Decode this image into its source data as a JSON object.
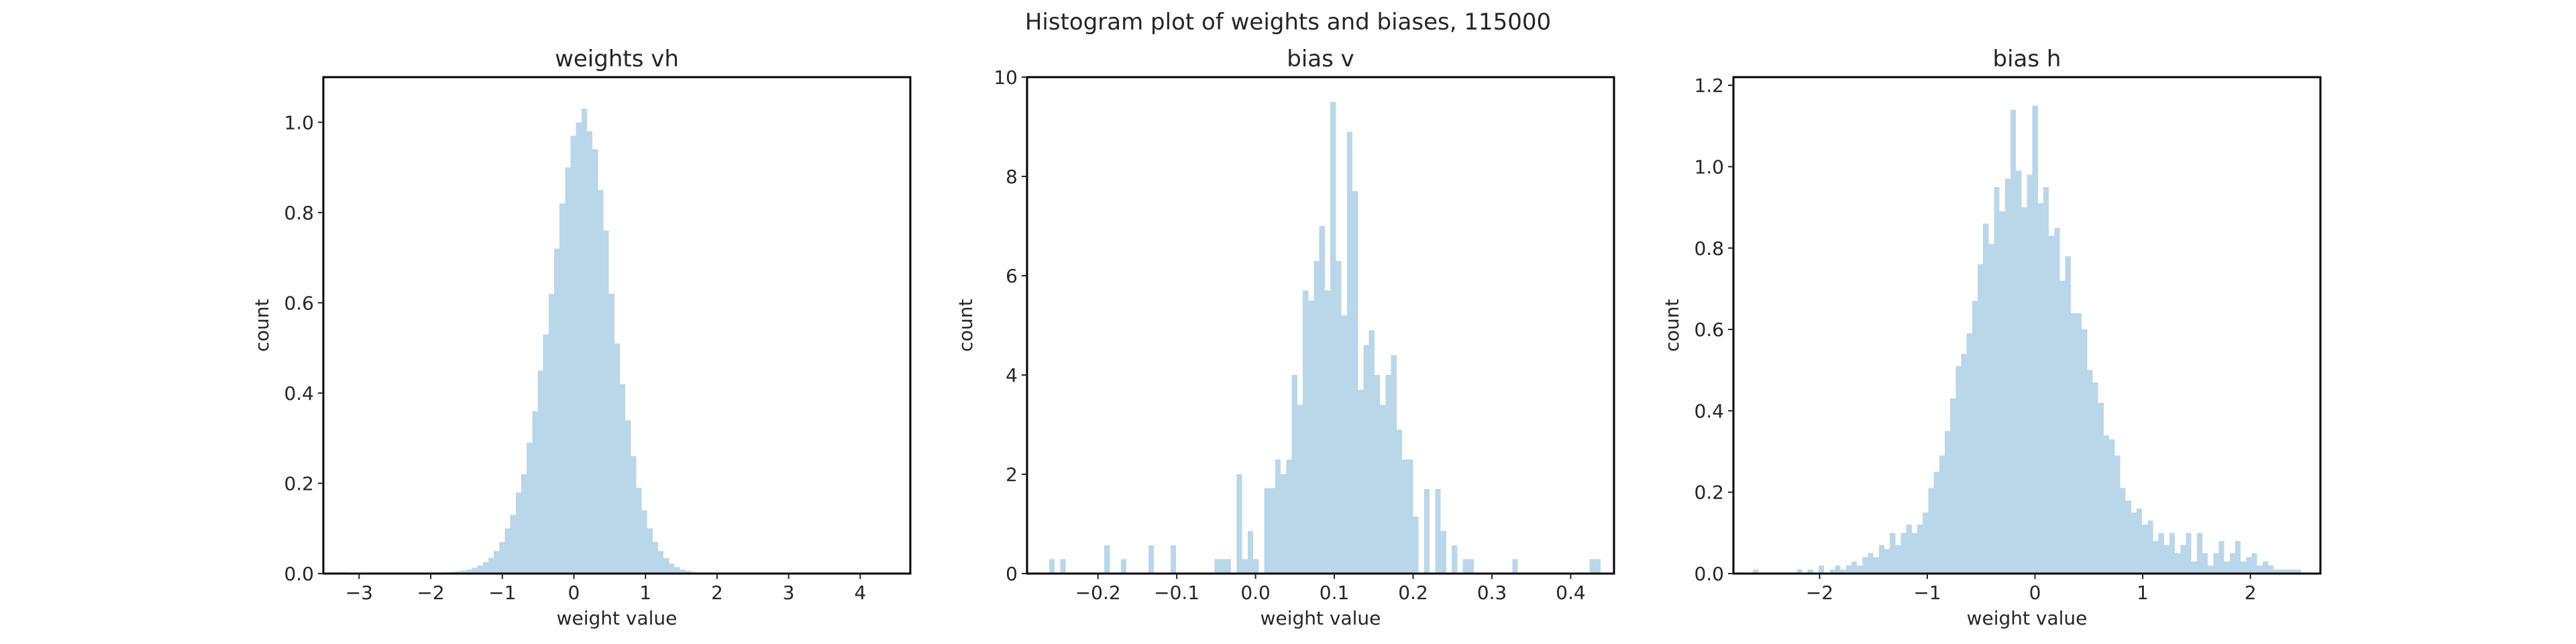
{
  "suptitle": "Histogram plot of weights and biases, 115000",
  "bar_color": "#bad6e9",
  "frame_color": "#000000",
  "chart_data": [
    {
      "type": "histogram",
      "title": "weights vh",
      "xlabel": "weight value",
      "ylabel": "count",
      "xlim": [
        -3.5,
        4.7
      ],
      "ylim": [
        0,
        1.1
      ],
      "xticks": [
        -3,
        -2,
        -1,
        0,
        1,
        2,
        3,
        4
      ],
      "yticks": [
        0.0,
        0.2,
        0.4,
        0.6,
        0.8,
        1.0
      ],
      "ytick_labels": [
        "0.0",
        "0.2",
        "0.4",
        "0.6",
        "0.8",
        "1.0"
      ],
      "bin_start": -3.26,
      "bin_width": 0.0765,
      "counts": [
        0.003,
        0,
        0,
        0,
        0,
        0,
        0,
        0,
        0,
        0,
        0,
        0,
        0,
        0,
        0,
        0.001,
        0.001,
        0.001,
        0.002,
        0.003,
        0.004,
        0.005,
        0.007,
        0.009,
        0.013,
        0.018,
        0.025,
        0.035,
        0.05,
        0.07,
        0.1,
        0.13,
        0.18,
        0.22,
        0.29,
        0.36,
        0.45,
        0.53,
        0.62,
        0.72,
        0.82,
        0.9,
        0.97,
        1.0,
        1.03,
        0.98,
        0.94,
        0.85,
        0.76,
        0.62,
        0.51,
        0.42,
        0.34,
        0.26,
        0.19,
        0.14,
        0.1,
        0.07,
        0.05,
        0.034,
        0.022,
        0.014,
        0.009,
        0.006,
        0.004,
        0.002,
        0.001,
        0.001,
        0.001,
        0.0005,
        0.0005,
        0.0003,
        0.0002,
        0.0001,
        0.0001,
        0.0001,
        0.0001,
        0.0001,
        0.0001,
        0.0001,
        0.0001,
        0.0001,
        0.0001,
        0.0001,
        0.0001,
        0.0001,
        0.0001,
        0.0001,
        0.0001,
        0.0001,
        0.0001,
        0.0001,
        0.0001,
        0.0001,
        0.0001,
        0.0001,
        0.0001,
        0.0001,
        0.0001,
        0.0001
      ]
    },
    {
      "type": "histogram",
      "title": "bias v",
      "xlabel": "weight value",
      "ylabel": "count",
      "xlim": [
        -0.29,
        0.455
      ],
      "ylim": [
        0,
        10
      ],
      "xticks": [
        -0.2,
        -0.1,
        0.0,
        0.1,
        0.2,
        0.3,
        0.4
      ],
      "xtick_labels": [
        "−0.2",
        "−0.1",
        "0.0",
        "0.1",
        "0.2",
        "0.3",
        "0.4"
      ],
      "yticks": [
        0,
        2,
        4,
        6,
        8,
        10
      ],
      "ytick_labels": [
        "0",
        "2",
        "4",
        "6",
        "8",
        "10"
      ],
      "bin_start": -0.262,
      "bin_width": 0.007,
      "counts": [
        0.29,
        0,
        0.29,
        0,
        0,
        0,
        0,
        0,
        0,
        0,
        0.57,
        0,
        0,
        0.29,
        0,
        0,
        0,
        0,
        0.57,
        0,
        0,
        0,
        0.57,
        0,
        0,
        0,
        0,
        0,
        0,
        0,
        0.29,
        0.29,
        0.29,
        0,
        2.0,
        0.29,
        0.86,
        0.29,
        0,
        1.72,
        1.72,
        2.3,
        2.0,
        2.3,
        4.0,
        3.4,
        5.7,
        5.5,
        6.3,
        7.0,
        5.7,
        9.5,
        6.3,
        5.2,
        8.9,
        7.7,
        3.7,
        4.6,
        4.9,
        4.0,
        3.4,
        4.0,
        4.4,
        2.9,
        2.3,
        2.3,
        1.15,
        0,
        1.7,
        0,
        1.7,
        0.86,
        0,
        0.57,
        0,
        0.29,
        0.29,
        0,
        0,
        0,
        0,
        0,
        0,
        0,
        0.29,
        0,
        0,
        0,
        0,
        0,
        0,
        0,
        0,
        0,
        0,
        0,
        0,
        0,
        0.29,
        0.29
      ]
    },
    {
      "type": "histogram",
      "title": "bias h",
      "xlabel": "weight value",
      "ylabel": "count",
      "xlim": [
        -2.8,
        2.65
      ],
      "ylim": [
        0,
        1.22
      ],
      "xticks": [
        -2,
        -1,
        0,
        1,
        2
      ],
      "xtick_labels": [
        "−2",
        "−1",
        "0",
        "1",
        "2"
      ],
      "yticks": [
        0.0,
        0.2,
        0.4,
        0.6,
        0.8,
        1.0,
        1.2
      ],
      "ytick_labels": [
        "0.0",
        "0.2",
        "0.4",
        "0.6",
        "0.8",
        "1.0",
        "1.2"
      ],
      "bin_start": -2.62,
      "bin_width": 0.0509,
      "counts": [
        0.01,
        0,
        0,
        0,
        0,
        0,
        0,
        0,
        0.01,
        0,
        0.01,
        0,
        0.02,
        0,
        0.01,
        0.02,
        0.01,
        0.02,
        0.03,
        0.02,
        0.04,
        0.05,
        0.04,
        0.07,
        0.06,
        0.1,
        0.07,
        0.1,
        0.12,
        0.1,
        0.12,
        0.15,
        0.21,
        0.25,
        0.29,
        0.35,
        0.43,
        0.51,
        0.54,
        0.59,
        0.67,
        0.76,
        0.86,
        0.81,
        0.95,
        0.89,
        0.97,
        1.14,
        0.99,
        0.9,
        0.98,
        1.15,
        0.91,
        0.95,
        0.83,
        0.85,
        0.72,
        0.78,
        0.64,
        0.64,
        0.6,
        0.5,
        0.47,
        0.42,
        0.34,
        0.33,
        0.29,
        0.21,
        0.18,
        0.15,
        0.16,
        0.12,
        0.13,
        0.08,
        0.1,
        0.07,
        0.1,
        0.05,
        0.07,
        0.1,
        0.03,
        0.1,
        0.05,
        0.02,
        0.05,
        0.08,
        0.03,
        0.05,
        0.08,
        0.03,
        0.04,
        0.05,
        0.02,
        0.03,
        0.02,
        0.01,
        0.01,
        0.01,
        0.01,
        0.01
      ]
    }
  ]
}
